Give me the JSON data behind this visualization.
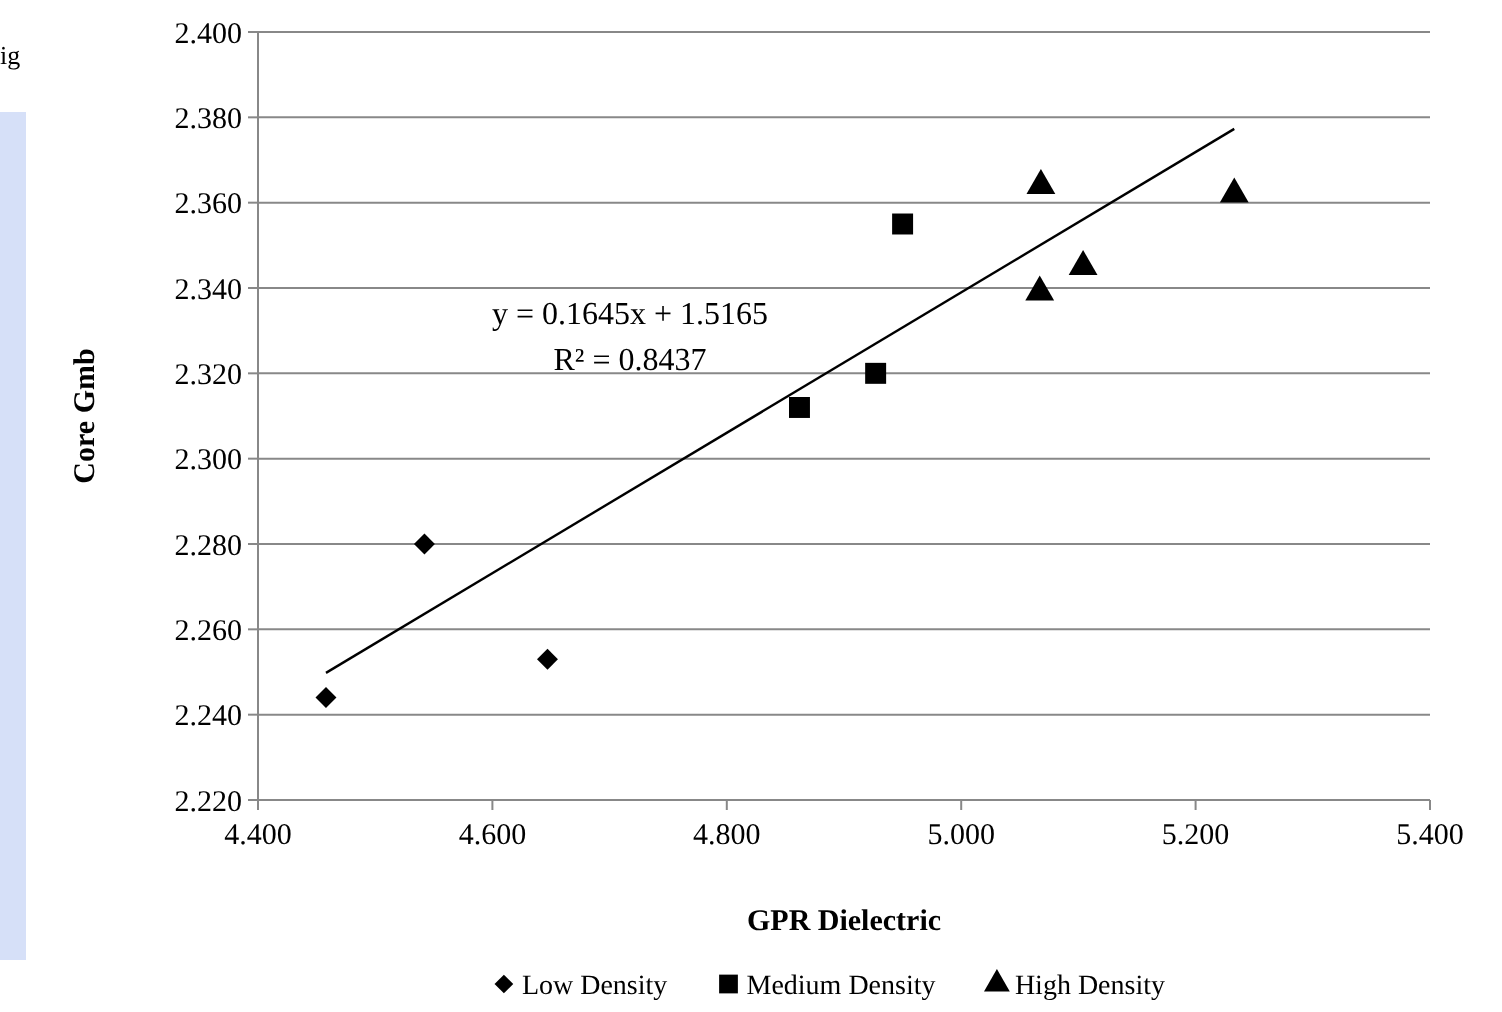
{
  "chart_data": {
    "type": "scatter",
    "xlabel": "GPR Dielectric",
    "ylabel": "Core Gmb",
    "xlim": [
      4.4,
      5.4
    ],
    "xticks": [
      {
        "value": 4.4,
        "label": "4.400"
      },
      {
        "value": 4.6,
        "label": "4.600"
      },
      {
        "value": 4.8,
        "label": "4.800"
      },
      {
        "value": 5.0,
        "label": "5.000"
      },
      {
        "value": 5.2,
        "label": "5.200"
      },
      {
        "value": 5.4,
        "label": "5.400"
      }
    ],
    "ylim": [
      2.22,
      2.4
    ],
    "yticks": [
      {
        "value": 2.22,
        "label": "2.220"
      },
      {
        "value": 2.24,
        "label": "2.240"
      },
      {
        "value": 2.26,
        "label": "2.260"
      },
      {
        "value": 2.28,
        "label": "2.280"
      },
      {
        "value": 2.3,
        "label": "2.300"
      },
      {
        "value": 2.32,
        "label": "2.320"
      },
      {
        "value": 2.34,
        "label": "2.340"
      },
      {
        "value": 2.36,
        "label": "2.360"
      },
      {
        "value": 2.38,
        "label": "2.380"
      },
      {
        "value": 2.4,
        "label": "2.400"
      }
    ],
    "grid": "y",
    "legend": "bottom",
    "series": [
      {
        "name": "Low Density",
        "color": "#000000",
        "marker": "diamond",
        "x": [
          4.458,
          4.542,
          4.647
        ],
        "values": [
          2.244,
          2.28,
          2.253
        ]
      },
      {
        "name": "Medium Density",
        "color": "#000000",
        "marker": "square",
        "x": [
          4.862,
          4.927,
          4.95
        ],
        "values": [
          2.312,
          2.32,
          2.355
        ]
      },
      {
        "name": "High Density",
        "color": "#000000",
        "marker": "triangle",
        "x": [
          5.068,
          5.067,
          5.104,
          5.233
        ],
        "values": [
          2.364,
          2.339,
          2.345,
          2.362
        ]
      },
      {
        "type": "line",
        "color": "#000000",
        "x": [
          4.458,
          5.233
        ],
        "values": [
          2.2498,
          2.3773
        ]
      }
    ],
    "annotations": [
      "y = 0.1645x + 1.5165",
      "R² = 0.8437",
      "ig"
    ]
  }
}
